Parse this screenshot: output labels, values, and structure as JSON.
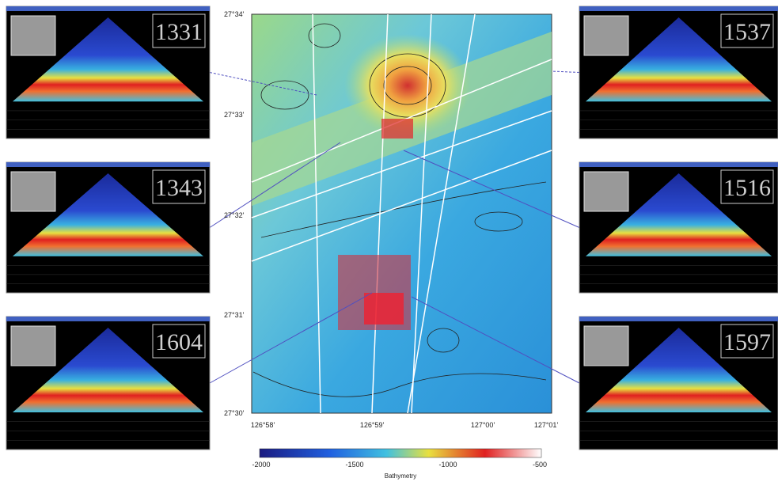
{
  "panels": [
    {
      "label": "1331"
    },
    {
      "label": "1537"
    },
    {
      "label": "1343"
    },
    {
      "label": "1516"
    },
    {
      "label": "1604"
    },
    {
      "label": "1597"
    }
  ],
  "map": {
    "lat_labels": [
      "27°34'",
      "27°33'",
      "27°32'",
      "27°31'",
      "27°30'"
    ],
    "lon_labels": [
      "126°58'",
      "126°59'",
      "127°00'",
      "127°01'"
    ]
  },
  "colorbar": {
    "ticks": [
      "-2000",
      "-1500",
      "-1000",
      "-500"
    ],
    "title": "Bathymetry"
  }
}
